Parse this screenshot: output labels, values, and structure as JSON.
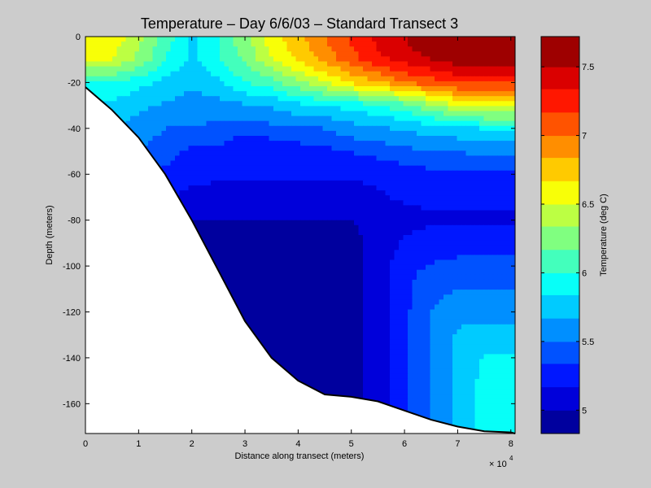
{
  "figure": {
    "background": "#cccccc"
  },
  "chart_data": {
    "type": "heatmap",
    "subtype": "filled-contour",
    "title": "Temperature – Day 6/6/03 – Standard Transect 3",
    "xlabel": "Distance along transect (meters)",
    "ylabel": "Depth (meters)",
    "x_multiplier_base": "× 10",
    "x_multiplier_exp": "4",
    "xlim": [
      0,
      80800
    ],
    "ylim": [
      -173,
      0
    ],
    "xticks": [
      0,
      10000,
      20000,
      30000,
      40000,
      50000,
      60000,
      70000,
      80000
    ],
    "xtick_labels": [
      "0",
      "1",
      "2",
      "3",
      "4",
      "5",
      "6",
      "7",
      "8"
    ],
    "yticks": [
      0,
      -20,
      -40,
      -60,
      -80,
      -100,
      -120,
      -140,
      -160
    ],
    "ytick_labels": [
      "0",
      "-20",
      "-40",
      "-60",
      "-80",
      "-100",
      "-120",
      "-140",
      "-160"
    ],
    "colorbar": {
      "label": "Temperature (deg C)",
      "clim": [
        4.83,
        7.72
      ],
      "ticks": [
        5,
        5.5,
        6,
        6.5,
        7,
        7.5
      ],
      "tick_labels": [
        "5",
        "5.5",
        "6",
        "6.5",
        "7",
        "7.5"
      ],
      "colormap": "jet"
    },
    "contour_levels": [
      4.83,
      5.0,
      5.17,
      5.34,
      5.5,
      5.67,
      5.84,
      6.0,
      6.17,
      6.34,
      6.5,
      6.67,
      6.84,
      7.0,
      7.17,
      7.34,
      7.5,
      7.72
    ],
    "seafloor": {
      "x": [
        0,
        5000,
        10000,
        15000,
        20000,
        25000,
        30000,
        35000,
        40000,
        45000,
        50000,
        55000,
        60000,
        65000,
        70000,
        75000,
        80000,
        80800
      ],
      "depth": [
        -22,
        -32,
        -44,
        -60,
        -80,
        -102,
        -124,
        -140,
        -150,
        -156,
        -157,
        -159,
        -163,
        -167,
        -170,
        -172,
        -172.5,
        -173
      ]
    },
    "temperature_grid": {
      "x": [
        0,
        5000,
        10000,
        15000,
        20000,
        25000,
        30000,
        35000,
        40000,
        45000,
        50000,
        55000,
        60000,
        65000,
        70000,
        75000,
        80800
      ],
      "depth": [
        0,
        -10,
        -20,
        -30,
        -40,
        -50,
        -60,
        -70,
        -80,
        -90,
        -100,
        -110,
        -120,
        -130,
        -140,
        -150,
        -160,
        -173
      ],
      "values": [
        [
          6.6,
          6.6,
          6.4,
          6.1,
          5.8,
          6.0,
          6.3,
          6.6,
          6.8,
          7.0,
          7.2,
          7.4,
          7.5,
          7.7,
          7.7,
          7.7,
          7.7
        ],
        [
          6.5,
          6.5,
          6.3,
          6.0,
          5.8,
          6.0,
          6.2,
          6.5,
          6.7,
          6.9,
          7.1,
          7.3,
          7.4,
          7.5,
          7.6,
          7.6,
          7.6
        ],
        [
          6.0,
          6.0,
          5.9,
          5.8,
          5.7,
          5.8,
          6.0,
          6.1,
          6.3,
          6.5,
          6.7,
          6.8,
          7.0,
          7.1,
          7.2,
          7.2,
          7.2
        ],
        [
          5.8,
          5.8,
          5.7,
          5.65,
          5.6,
          5.6,
          5.65,
          5.7,
          5.8,
          5.85,
          5.9,
          6.0,
          6.1,
          6.3,
          6.5,
          6.6,
          6.6
        ],
        [
          5.8,
          5.7,
          5.6,
          5.5,
          5.5,
          5.45,
          5.4,
          5.45,
          5.5,
          5.5,
          5.6,
          5.65,
          5.7,
          5.75,
          5.8,
          5.85,
          5.85
        ],
        [
          5.7,
          5.6,
          5.5,
          5.4,
          5.3,
          5.3,
          5.2,
          5.2,
          5.25,
          5.3,
          5.35,
          5.4,
          5.45,
          5.5,
          5.5,
          5.55,
          5.55
        ],
        [
          5.6,
          5.5,
          5.4,
          5.3,
          5.25,
          5.2,
          5.2,
          5.2,
          5.2,
          5.2,
          5.2,
          5.2,
          5.25,
          5.3,
          5.3,
          5.3,
          5.3
        ],
        [
          5.5,
          5.4,
          5.3,
          5.2,
          5.1,
          5.1,
          5.1,
          5.1,
          5.1,
          5.1,
          5.1,
          5.15,
          5.2,
          5.2,
          5.2,
          5.2,
          5.2
        ],
        [
          5.4,
          5.3,
          5.2,
          5.1,
          5.0,
          5.0,
          5.0,
          5.0,
          5.0,
          5.0,
          5.0,
          5.05,
          5.1,
          5.15,
          5.15,
          5.15,
          5.15
        ],
        [
          5.3,
          5.2,
          5.1,
          5.0,
          4.95,
          4.95,
          4.95,
          4.95,
          4.95,
          4.95,
          4.95,
          5.05,
          5.2,
          5.25,
          5.25,
          5.25,
          5.25
        ],
        [
          5.2,
          5.1,
          5.0,
          4.95,
          4.95,
          4.9,
          4.9,
          4.95,
          4.95,
          4.95,
          4.95,
          5.05,
          5.3,
          5.35,
          5.4,
          5.4,
          5.4
        ],
        [
          5.1,
          5.0,
          4.95,
          4.9,
          4.9,
          4.9,
          4.9,
          4.9,
          4.9,
          4.95,
          4.95,
          5.05,
          5.3,
          5.45,
          5.5,
          5.5,
          5.5
        ],
        [
          5.0,
          4.95,
          4.9,
          4.9,
          4.9,
          4.9,
          4.9,
          4.9,
          4.9,
          4.9,
          4.95,
          5.05,
          5.3,
          5.5,
          5.6,
          5.6,
          5.6
        ],
        [
          4.95,
          4.9,
          4.9,
          4.9,
          4.9,
          4.9,
          4.9,
          4.9,
          4.9,
          4.9,
          4.95,
          5.05,
          5.3,
          5.5,
          5.7,
          5.75,
          5.75
        ],
        [
          4.95,
          4.9,
          4.9,
          4.9,
          4.9,
          4.9,
          4.9,
          4.9,
          4.9,
          4.9,
          4.95,
          5.05,
          5.3,
          5.5,
          5.7,
          5.85,
          5.85
        ],
        [
          4.95,
          4.9,
          4.9,
          4.9,
          4.9,
          4.9,
          4.9,
          4.9,
          4.9,
          4.9,
          4.95,
          5.05,
          5.3,
          5.5,
          5.7,
          5.9,
          5.9
        ],
        [
          4.95,
          4.9,
          4.9,
          4.9,
          4.9,
          4.9,
          4.9,
          4.9,
          4.9,
          4.9,
          4.95,
          5.05,
          5.3,
          5.5,
          5.7,
          5.9,
          5.9
        ],
        [
          4.95,
          4.9,
          4.9,
          4.9,
          4.9,
          4.9,
          4.9,
          4.9,
          4.9,
          4.9,
          4.95,
          5.05,
          5.3,
          5.5,
          5.7,
          5.9,
          5.9
        ]
      ]
    },
    "grid": false,
    "legend": "colorbar-right"
  }
}
